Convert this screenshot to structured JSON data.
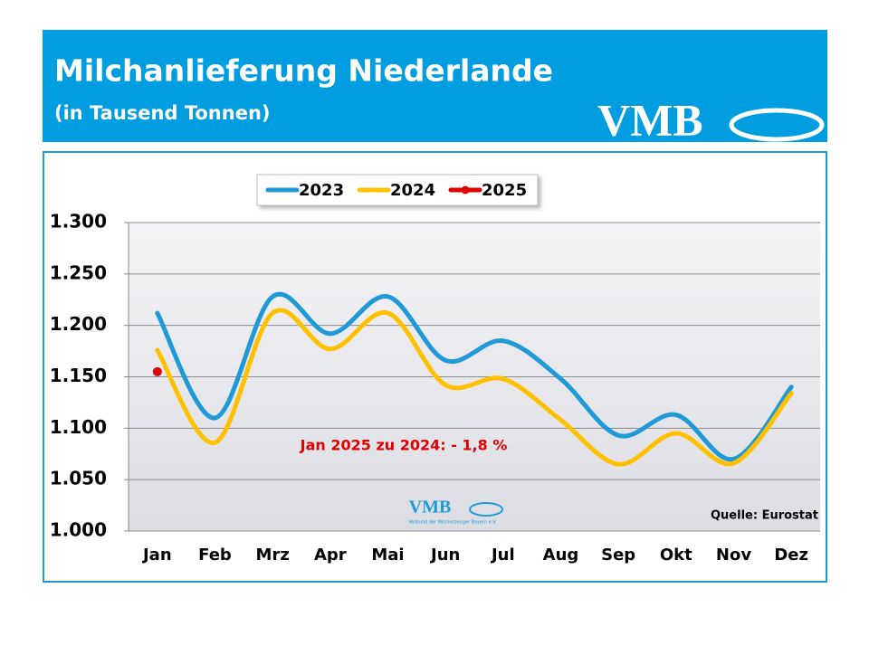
{
  "header": {
    "title": "Milchanlieferung Niederlande",
    "subtitle": "(in Tausend Tonnen)",
    "logo": "VMB"
  },
  "chart_data": {
    "type": "line",
    "categories": [
      "Jan",
      "Feb",
      "Mrz",
      "Apr",
      "Mai",
      "Jun",
      "Jul",
      "Aug",
      "Sep",
      "Okt",
      "Nov",
      "Dez"
    ],
    "series": [
      {
        "name": "2023",
        "color": "#1f9ad7",
        "values": [
          1212,
          1110,
          1228,
          1192,
          1228,
          1166,
          1185,
          1148,
          1093,
          1113,
          1070,
          1140
        ]
      },
      {
        "name": "2024",
        "color": "#ffc000",
        "values": [
          1176,
          1086,
          1212,
          1177,
          1212,
          1142,
          1148,
          1108,
          1065,
          1095,
          1066,
          1134
        ]
      },
      {
        "name": "2025",
        "color": "#e00000",
        "values": [
          1155,
          null,
          null,
          null,
          null,
          null,
          null,
          null,
          null,
          null,
          null,
          null
        ]
      }
    ],
    "ylim": [
      1000,
      1300
    ],
    "yticks": [
      {
        "value": 1000,
        "label": "1.000"
      },
      {
        "value": 1050,
        "label": "1.050"
      },
      {
        "value": 1100,
        "label": "1.100"
      },
      {
        "value": 1150,
        "label": "1.150"
      },
      {
        "value": 1200,
        "label": "1.200"
      },
      {
        "value": 1250,
        "label": "1.250"
      },
      {
        "value": 1300,
        "label": "1.300"
      }
    ],
    "grid": true,
    "annotation": "Jan 2025 zu 2024: - 1,8 %",
    "source": "Quelle: Eurostat",
    "watermark": "VMB",
    "watermark_caption": "Verbund der Milcherzeuger Bayern e.V."
  }
}
